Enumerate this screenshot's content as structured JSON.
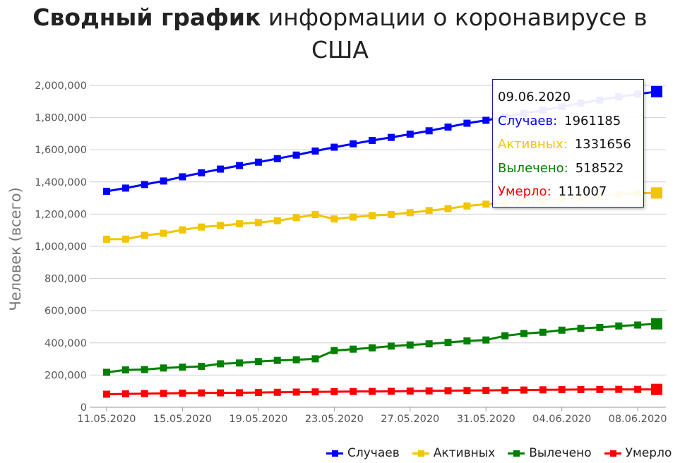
{
  "title": {
    "bold": "Сводный график",
    "rest": " информации о коронавирусе в США"
  },
  "tooltip": {
    "date": "09.06.2020",
    "rows": [
      {
        "label": "Случаев:",
        "value": "1961185",
        "color": "#0000ff"
      },
      {
        "label": "Активных:",
        "value": "1331656",
        "color": "#f2c500"
      },
      {
        "label": "Вылечено:",
        "value": "518522",
        "color": "#008000"
      },
      {
        "label": "Умерло:",
        "value": "111007",
        "color": "#ff0000"
      }
    ]
  },
  "chart_data": {
    "type": "line",
    "ylabel": "Человек (всего)",
    "ylim": [
      0,
      2000000
    ],
    "yticks": [
      0,
      200000,
      400000,
      600000,
      800000,
      1000000,
      1200000,
      1400000,
      1600000,
      1800000,
      2000000
    ],
    "ytick_labels": [
      "0",
      "200,000",
      "400,000",
      "600,000",
      "800,000",
      "1,000,000",
      "1,200,000",
      "1,400,000",
      "1,600,000",
      "1,800,000",
      "2,000,000"
    ],
    "xtick_labels": [
      "11.05.2020",
      "15.05.2020",
      "19.05.2020",
      "23.05.2020",
      "27.05.2020",
      "31.05.2020",
      "04.06.2020",
      "08.06.2020"
    ],
    "xtick_every": 4,
    "grid": true,
    "legend_position": "bottom-right",
    "x": [
      "11.05.2020",
      "12.05.2020",
      "13.05.2020",
      "14.05.2020",
      "15.05.2020",
      "16.05.2020",
      "17.05.2020",
      "18.05.2020",
      "19.05.2020",
      "20.05.2020",
      "21.05.2020",
      "22.05.2020",
      "23.05.2020",
      "24.05.2020",
      "25.05.2020",
      "26.05.2020",
      "27.05.2020",
      "28.05.2020",
      "29.05.2020",
      "30.05.2020",
      "31.05.2020",
      "01.06.2020",
      "02.06.2020",
      "03.06.2020",
      "04.06.2020",
      "05.06.2020",
      "06.06.2020",
      "07.06.2020",
      "08.06.2020",
      "09.06.2020"
    ],
    "series": [
      {
        "name": "Случаев",
        "color": "#0000ff",
        "values": [
          1342000,
          1362000,
          1384000,
          1406000,
          1432000,
          1457000,
          1480000,
          1502000,
          1523000,
          1545000,
          1567000,
          1592000,
          1616000,
          1637000,
          1658000,
          1677000,
          1697000,
          1718000,
          1741000,
          1765000,
          1783000,
          1804000,
          1826000,
          1846000,
          1867000,
          1890000,
          1909000,
          1929000,
          1946000,
          1961185
        ]
      },
      {
        "name": "Активных",
        "color": "#f2c500",
        "values": [
          1044000,
          1045000,
          1068000,
          1081000,
          1102000,
          1120000,
          1129000,
          1140000,
          1148000,
          1159000,
          1178000,
          1197000,
          1170000,
          1182000,
          1191000,
          1198000,
          1209000,
          1222000,
          1234000,
          1251000,
          1262000,
          1266000,
          1276000,
          1285000,
          1295000,
          1305000,
          1313000,
          1322000,
          1330000,
          1331656
        ]
      },
      {
        "name": "Вылечено",
        "color": "#008000",
        "values": [
          217000,
          232000,
          234000,
          244000,
          249000,
          254000,
          270000,
          275000,
          284000,
          291000,
          295000,
          301000,
          352000,
          361000,
          369000,
          380000,
          387000,
          394000,
          403000,
          412000,
          418000,
          444000,
          458000,
          466000,
          479000,
          490000,
          496000,
          505000,
          511000,
          518522
        ]
      },
      {
        "name": "Умерло",
        "color": "#ff0000",
        "values": [
          81000,
          83000,
          84800,
          86000,
          87600,
          88800,
          89500,
          90100,
          91600,
          93000,
          94300,
          95500,
          96700,
          97700,
          98200,
          98900,
          100400,
          101700,
          102900,
          104000,
          105000,
          106000,
          107000,
          108200,
          109300,
          110000,
          110600,
          111000,
          111000,
          111007
        ]
      }
    ]
  }
}
